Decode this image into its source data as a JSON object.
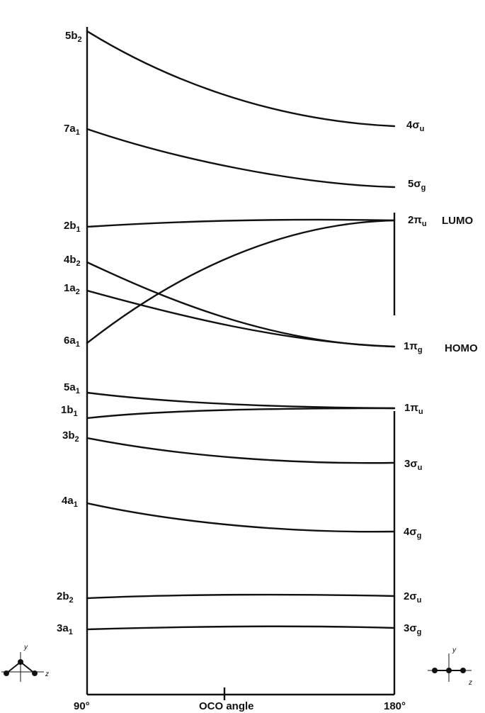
{
  "diagram": {
    "x_axis": {
      "left_label": "90°",
      "center_label": "OCO angle",
      "right_label": "180°"
    },
    "frontier_labels": {
      "lumo": "LUMO",
      "homo": "HOMO"
    },
    "coordinate_axes": {
      "bent_y": "y",
      "bent_z": "z",
      "linear_y": "y",
      "linear_z": "z"
    },
    "orbitals": [
      {
        "id": "5b2",
        "left": {
          "main": "5b",
          "sub": "2"
        },
        "right": {
          "main": "4σ",
          "sub": "u"
        }
      },
      {
        "id": "7a1",
        "left": {
          "main": "7a",
          "sub": "1"
        },
        "right": {
          "main": "5σ",
          "sub": "g"
        }
      },
      {
        "id": "2b1",
        "left": {
          "main": "2b",
          "sub": "1"
        },
        "right": {
          "main": "2π",
          "sub": "u"
        }
      },
      {
        "id": "4b2",
        "left": {
          "main": "4b",
          "sub": "2"
        },
        "right": {
          "main": "1π",
          "sub": "g"
        }
      },
      {
        "id": "1a2",
        "left": {
          "main": "1a",
          "sub": "2"
        },
        "right": null
      },
      {
        "id": "6a1",
        "left": {
          "main": "6a",
          "sub": "1"
        },
        "right": null
      },
      {
        "id": "5a1",
        "left": {
          "main": "5a",
          "sub": "1"
        },
        "right": {
          "main": "1π",
          "sub": "u"
        }
      },
      {
        "id": "1b1",
        "left": {
          "main": "1b",
          "sub": "1"
        },
        "right": null
      },
      {
        "id": "3b2",
        "left": {
          "main": "3b",
          "sub": "2"
        },
        "right": {
          "main": "3σ",
          "sub": "u"
        }
      },
      {
        "id": "4a1",
        "left": {
          "main": "4a",
          "sub": "1"
        },
        "right": {
          "main": "4σ",
          "sub": "g"
        }
      },
      {
        "id": "2b2",
        "left": {
          "main": "2b",
          "sub": "2"
        },
        "right": {
          "main": "2σ",
          "sub": "u"
        }
      },
      {
        "id": "3a1",
        "left": {
          "main": "3a",
          "sub": "1"
        },
        "right": {
          "main": "3σ",
          "sub": "g"
        }
      }
    ]
  }
}
